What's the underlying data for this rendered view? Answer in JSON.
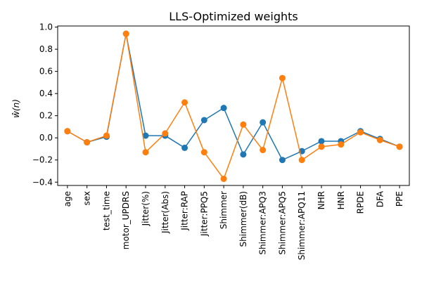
{
  "chart_data": {
    "type": "line",
    "title": "LLS-Optimized weights",
    "xlabel": "",
    "ylabel": "ŵ(n)",
    "categories": [
      "age",
      "sex",
      "test_time",
      "motor_UPDRS",
      "Jitter(%)",
      "Jitter(Abs)",
      "Jitter:RAP",
      "Jitter:PPQ5",
      "Shimmer",
      "Shimmer(dB)",
      "Shimmer:APQ3",
      "Shimmer:APQ5",
      "Shimmer:APQ11",
      "NHR",
      "HNR",
      "RPDE",
      "DFA",
      "PPE"
    ],
    "ylim": [
      -0.43,
      1.01
    ],
    "yticks": [
      -0.4,
      -0.2,
      0.0,
      0.2,
      0.4,
      0.6,
      0.8,
      1.0
    ],
    "ytick_labels": [
      "−0.4",
      "−0.2",
      "0.0",
      "0.2",
      "0.4",
      "0.6",
      "0.8",
      "1.0"
    ],
    "grid": false,
    "series": [
      {
        "color": "#1f77b4",
        "values": [
          0.06,
          -0.04,
          0.01,
          0.94,
          0.02,
          0.02,
          -0.09,
          0.16,
          0.27,
          -0.15,
          0.14,
          -0.2,
          -0.12,
          -0.03,
          -0.03,
          0.06,
          -0.01,
          -0.08
        ]
      },
      {
        "color": "#ff7f0e",
        "values": [
          0.06,
          -0.04,
          0.02,
          0.94,
          -0.13,
          0.04,
          0.32,
          -0.13,
          -0.37,
          0.12,
          -0.11,
          0.54,
          -0.2,
          -0.08,
          -0.06,
          0.05,
          -0.02,
          -0.08
        ]
      }
    ]
  }
}
